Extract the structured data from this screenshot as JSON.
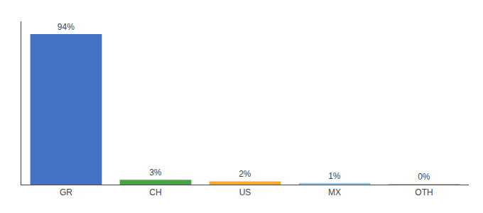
{
  "chart_data": {
    "type": "bar",
    "categories": [
      "GR",
      "CH",
      "US",
      "MX",
      "OTH"
    ],
    "values": [
      94,
      3,
      2,
      1,
      0.2
    ],
    "value_labels": [
      "94%",
      "3%",
      "2%",
      "1%",
      "0%"
    ],
    "data_labels": true,
    "colors": [
      "#4472C4",
      "#43A843",
      "#FFA726",
      "#90CAF9",
      "#90CAF9"
    ],
    "ylim": [
      0,
      102
    ],
    "grid": false,
    "tick_labels": "x"
  }
}
